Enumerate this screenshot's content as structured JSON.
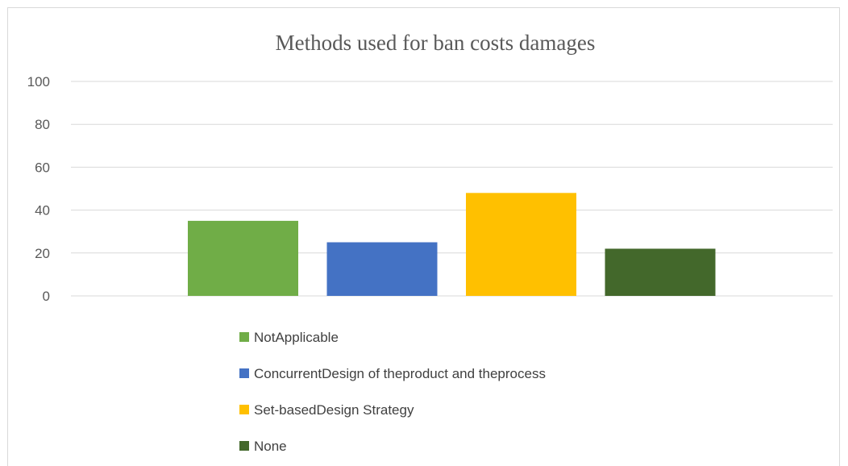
{
  "chart_data": {
    "type": "bar",
    "title": "Methods used for ban costs damages",
    "xlabel": "",
    "ylabel": "",
    "ylim": [
      0,
      100
    ],
    "yticks": [
      0,
      20,
      40,
      60,
      80,
      100
    ],
    "grid": true,
    "legend_position": "bottom",
    "series": [
      {
        "name": "NotApplicable",
        "value": 35,
        "color": "#70ad47"
      },
      {
        "name": "ConcurrentDesign of theproduct and theprocess",
        "value": 25,
        "color": "#4472c4"
      },
      {
        "name": "Set-basedDesign Strategy",
        "value": 48,
        "color": "#ffc000"
      },
      {
        "name": "None",
        "value": 22,
        "color": "#43682b"
      }
    ]
  }
}
